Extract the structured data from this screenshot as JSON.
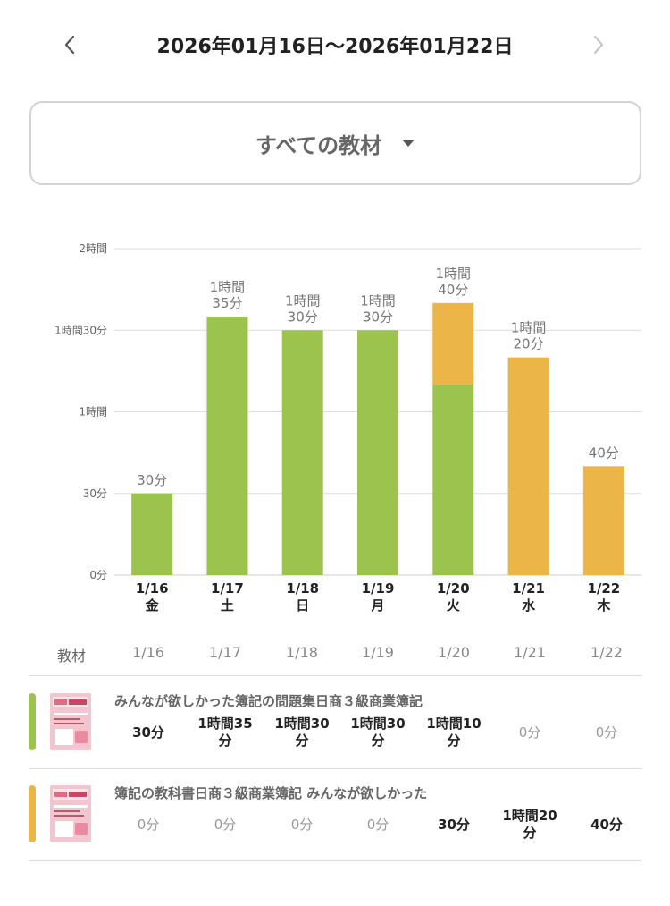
{
  "header": {
    "range_title": "2026年01月16日〜2026年01月22日",
    "prev_icon": "chevron-left-icon",
    "next_icon": "chevron-right-icon"
  },
  "selector": {
    "label": "すべての教材",
    "caret_icon": "caret-down-icon"
  },
  "colors": {
    "green": "#9cc34e",
    "orange": "#ebb548",
    "grid": "#dddddd"
  },
  "chart_data": {
    "type": "bar",
    "stacked": true,
    "unit": "minutes",
    "ylim": [
      0,
      120
    ],
    "y_ticks": [
      {
        "value": 0,
        "label": "0分"
      },
      {
        "value": 30,
        "label": "30分"
      },
      {
        "value": 60,
        "label": "1時間"
      },
      {
        "value": 90,
        "label": "1時間30分"
      },
      {
        "value": 120,
        "label": "2時間"
      }
    ],
    "grid": true,
    "categories": [
      "1/16",
      "1/17",
      "1/18",
      "1/19",
      "1/20",
      "1/21",
      "1/22"
    ],
    "weekdays": [
      "金",
      "土",
      "日",
      "月",
      "火",
      "水",
      "木"
    ],
    "series": [
      {
        "color": "#9cc34e",
        "values": [
          30,
          95,
          90,
          90,
          70,
          0,
          0
        ]
      },
      {
        "color": "#ebb548",
        "values": [
          0,
          0,
          0,
          0,
          30,
          80,
          40
        ]
      }
    ],
    "total_labels": [
      [
        "30分"
      ],
      [
        "1時間",
        "35分"
      ],
      [
        "1時間",
        "30分"
      ],
      [
        "1時間",
        "30分"
      ],
      [
        "1時間",
        "40分"
      ],
      [
        "1時間",
        "20分"
      ],
      [
        "40分"
      ]
    ]
  },
  "table": {
    "first_header": "教材",
    "dates": [
      "1/16",
      "1/17",
      "1/18",
      "1/19",
      "1/20",
      "1/21",
      "1/22"
    ],
    "rows": [
      {
        "title": "みんなが欲しかった簿記の問題集日商３級商業簿記",
        "color": "#9cc34e",
        "cells": [
          {
            "lines": [
              "30分"
            ],
            "active": true
          },
          {
            "lines": [
              "1時間35",
              "分"
            ],
            "active": true
          },
          {
            "lines": [
              "1時間30",
              "分"
            ],
            "active": true
          },
          {
            "lines": [
              "1時間30",
              "分"
            ],
            "active": true
          },
          {
            "lines": [
              "1時間10",
              "分"
            ],
            "active": true
          },
          {
            "lines": [
              "0分"
            ],
            "active": false
          },
          {
            "lines": [
              "0分"
            ],
            "active": false
          }
        ]
      },
      {
        "title": "簿記の教科書日商３級商業簿記 みんなが欲しかった",
        "color": "#ebb548",
        "cells": [
          {
            "lines": [
              "0分"
            ],
            "active": false
          },
          {
            "lines": [
              "0分"
            ],
            "active": false
          },
          {
            "lines": [
              "0分"
            ],
            "active": false
          },
          {
            "lines": [
              "0分"
            ],
            "active": false
          },
          {
            "lines": [
              "30分"
            ],
            "active": true
          },
          {
            "lines": [
              "1時間20",
              "分"
            ],
            "active": true
          },
          {
            "lines": [
              "40分"
            ],
            "active": true
          }
        ]
      }
    ]
  }
}
